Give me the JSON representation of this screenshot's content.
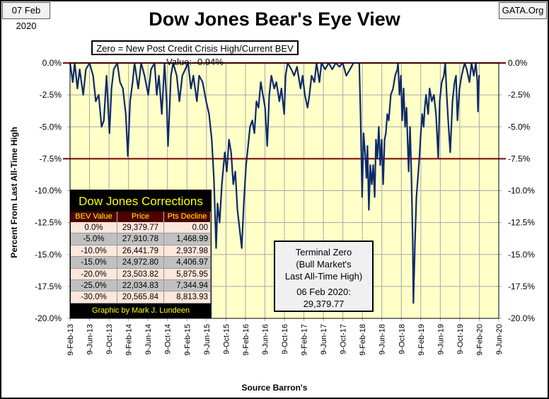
{
  "header": {
    "date": "07 Feb 2020",
    "site": "GATA.Org"
  },
  "chart_data": {
    "type": "line",
    "title": "Dow Jones Bear's Eye View",
    "subtitle": "Zero = New Post Credit Crisis High/Current BEV Value:  -0.94%",
    "ylabel": "Percent From Last All-Time High",
    "xlabel": "Source Barron's",
    "ylim": [
      -20,
      0
    ],
    "xlim": [
      "2013-02-09",
      "2020-06-09"
    ],
    "grid": true,
    "y_ticks": [
      "0.0%",
      "-2.5%",
      "-5.0%",
      "-7.5%",
      "-10.0%",
      "-12.5%",
      "-15.0%",
      "-17.5%",
      "-20.0%"
    ],
    "y_tick_values": [
      0,
      -2.5,
      -5,
      -7.5,
      -10,
      -12.5,
      -15,
      -17.5,
      -20
    ],
    "x_ticks": [
      "9-Feb-13",
      "9-Jun-13",
      "9-Oct-13",
      "9-Feb-14",
      "9-Jun-14",
      "9-Oct-14",
      "9-Feb-15",
      "9-Jun-15",
      "9-Oct-15",
      "9-Feb-16",
      "9-Jun-16",
      "9-Oct-16",
      "9-Feb-17",
      "9-Jun-17",
      "9-Oct-17",
      "9-Feb-18",
      "9-Jun-18",
      "9-Oct-18",
      "9-Feb-19",
      "9-Jun-19",
      "9-Oct-19",
      "9-Feb-20",
      "9-Jun-20"
    ],
    "reference_lines": [
      0,
      -7.5
    ],
    "colors": {
      "series": "#0d2a6b",
      "reference": "#7a0000",
      "plot_bg": "#ffffc8",
      "grid": "#a8a8a8"
    },
    "series": [
      {
        "points": [
          [
            "2013-02-09",
            0
          ],
          [
            "2013-02-26",
            -1.5
          ],
          [
            "2013-03-10",
            0
          ],
          [
            "2013-03-27",
            -2
          ],
          [
            "2013-04-10",
            -0.5
          ],
          [
            "2013-05-02",
            -2.5
          ],
          [
            "2013-05-19",
            -0.5
          ],
          [
            "2013-06-11",
            0
          ],
          [
            "2013-07-03",
            -1
          ],
          [
            "2013-07-20",
            -3
          ],
          [
            "2013-08-07",
            -2.5
          ],
          [
            "2013-08-25",
            -5
          ],
          [
            "2013-09-08",
            -4.5
          ],
          [
            "2013-09-25",
            -1
          ],
          [
            "2013-10-13",
            -5.5
          ],
          [
            "2013-10-26",
            -2
          ],
          [
            "2013-11-09",
            -0.5
          ],
          [
            "2013-12-01",
            0
          ],
          [
            "2013-12-18",
            -1.5
          ],
          [
            "2014-01-05",
            -2
          ],
          [
            "2014-01-23",
            -4
          ],
          [
            "2014-02-05",
            -7.3
          ],
          [
            "2014-02-19",
            -3
          ],
          [
            "2014-03-07",
            -1.5
          ],
          [
            "2014-03-19",
            0
          ],
          [
            "2014-04-11",
            -2
          ],
          [
            "2014-04-29",
            0
          ],
          [
            "2014-05-20",
            -1
          ],
          [
            "2014-06-12",
            -2.5
          ],
          [
            "2014-06-30",
            -0.5
          ],
          [
            "2014-07-22",
            0
          ],
          [
            "2014-08-04",
            -2.5
          ],
          [
            "2014-08-18",
            -1
          ],
          [
            "2014-09-05",
            -4
          ],
          [
            "2014-09-22",
            0
          ],
          [
            "2014-10-05",
            -3
          ],
          [
            "2014-10-14",
            -6.5
          ],
          [
            "2014-11-01",
            -1
          ],
          [
            "2014-11-15",
            0
          ],
          [
            "2014-12-07",
            -1
          ],
          [
            "2014-12-24",
            -3
          ],
          [
            "2015-01-11",
            -1
          ],
          [
            "2015-01-29",
            -0.5
          ],
          [
            "2015-02-16",
            0
          ],
          [
            "2015-03-06",
            -2
          ],
          [
            "2015-03-21",
            -1
          ],
          [
            "2015-04-12",
            -3
          ],
          [
            "2015-04-26",
            -1
          ],
          [
            "2015-05-18",
            -1.5
          ],
          [
            "2015-06-09",
            -3
          ],
          [
            "2015-06-27",
            -4
          ],
          [
            "2015-07-14",
            -6
          ],
          [
            "2015-07-27",
            -9
          ],
          [
            "2015-08-10",
            -14.5
          ],
          [
            "2015-08-19",
            -11
          ],
          [
            "2015-09-01",
            -12.5
          ],
          [
            "2015-09-15",
            -9.5
          ],
          [
            "2015-10-03",
            -7
          ],
          [
            "2015-10-16",
            -8.5
          ],
          [
            "2015-10-29",
            -6
          ],
          [
            "2015-11-12",
            -7
          ],
          [
            "2015-11-25",
            -9.5
          ],
          [
            "2015-12-08",
            -8.5
          ],
          [
            "2015-12-21",
            -11.5
          ],
          [
            "2016-01-04",
            -13
          ],
          [
            "2016-01-17",
            -14.5
          ],
          [
            "2016-01-30",
            -11
          ],
          [
            "2016-02-13",
            -8
          ],
          [
            "2016-02-26",
            -6.5
          ],
          [
            "2016-03-09",
            -5
          ],
          [
            "2016-03-23",
            -4.5
          ],
          [
            "2016-04-05",
            -5.5
          ],
          [
            "2016-04-18",
            -3
          ],
          [
            "2016-05-01",
            -3.5
          ],
          [
            "2016-05-15",
            -1.5
          ],
          [
            "2016-05-28",
            -2.5
          ],
          [
            "2016-06-11",
            -3.5
          ],
          [
            "2016-06-24",
            -6.5
          ],
          [
            "2016-07-07",
            -2.5
          ],
          [
            "2016-07-20",
            -1
          ],
          [
            "2016-08-07",
            -2
          ],
          [
            "2016-08-20",
            -1.5
          ],
          [
            "2016-09-08",
            -3
          ],
          [
            "2016-09-21",
            -2
          ],
          [
            "2016-10-08",
            -4
          ],
          [
            "2016-10-17",
            -1
          ],
          [
            "2016-10-30",
            0
          ],
          [
            "2016-11-22",
            -0.5
          ],
          [
            "2016-12-09",
            -1
          ],
          [
            "2016-12-27",
            -0.3
          ],
          [
            "2017-01-18",
            -2
          ],
          [
            "2017-01-31",
            -1
          ],
          [
            "2017-02-14",
            -2.5
          ],
          [
            "2017-03-03",
            -3.5
          ],
          [
            "2017-03-15",
            -2.5
          ],
          [
            "2017-03-28",
            -1
          ],
          [
            "2017-04-15",
            -1.5
          ],
          [
            "2017-04-28",
            0
          ],
          [
            "2017-05-16",
            -1.5
          ],
          [
            "2017-05-29",
            0
          ],
          [
            "2017-06-21",
            -0.5
          ],
          [
            "2017-07-13",
            0
          ],
          [
            "2017-08-04",
            -0.5
          ],
          [
            "2017-08-26",
            0
          ],
          [
            "2017-09-18",
            -0.3
          ],
          [
            "2017-10-09",
            0
          ],
          [
            "2017-10-31",
            -1
          ],
          [
            "2017-11-23",
            -0.5
          ],
          [
            "2017-12-15",
            0
          ],
          [
            "2018-01-20",
            0
          ],
          [
            "2018-01-28",
            -4
          ],
          [
            "2018-02-07",
            -10.5
          ],
          [
            "2018-02-16",
            -5.5
          ],
          [
            "2018-02-25",
            -7
          ],
          [
            "2018-03-06",
            -9
          ],
          [
            "2018-03-12",
            -6.5
          ],
          [
            "2018-03-21",
            -11.5
          ],
          [
            "2018-03-30",
            -8
          ],
          [
            "2018-04-08",
            -9.5
          ],
          [
            "2018-04-17",
            -8
          ],
          [
            "2018-04-26",
            -10.5
          ],
          [
            "2018-05-04",
            -6
          ],
          [
            "2018-05-13",
            -7.5
          ],
          [
            "2018-05-22",
            -5
          ],
          [
            "2018-05-31",
            -8
          ],
          [
            "2018-06-09",
            -6
          ],
          [
            "2018-06-18",
            -9.5
          ],
          [
            "2018-06-27",
            -6
          ],
          [
            "2018-07-05",
            -5.5
          ],
          [
            "2018-07-14",
            -4
          ],
          [
            "2018-07-23",
            -4.5
          ],
          [
            "2018-08-05",
            -2.5
          ],
          [
            "2018-08-19",
            -2
          ],
          [
            "2018-09-01",
            -1
          ],
          [
            "2018-09-15",
            -0.5
          ],
          [
            "2018-09-19",
            0
          ],
          [
            "2018-09-28",
            -2.5
          ],
          [
            "2018-10-07",
            -1
          ],
          [
            "2018-10-15",
            -4.5
          ],
          [
            "2018-10-24",
            -2
          ],
          [
            "2018-11-02",
            -5
          ],
          [
            "2018-11-11",
            -3.5
          ],
          [
            "2018-11-24",
            -8.5
          ],
          [
            "2018-12-03",
            -5
          ],
          [
            "2018-12-12",
            -9
          ],
          [
            "2018-12-20",
            -14
          ],
          [
            "2018-12-24",
            -18.8
          ],
          [
            "2019-01-03",
            -14
          ],
          [
            "2019-01-12",
            -10.5
          ],
          [
            "2019-01-21",
            -9
          ],
          [
            "2019-01-30",
            -7.5
          ],
          [
            "2019-02-08",
            -5.5
          ],
          [
            "2019-02-17",
            -4
          ],
          [
            "2019-02-26",
            -5
          ],
          [
            "2019-03-05",
            -3.5
          ],
          [
            "2019-03-13",
            -2.5
          ],
          [
            "2019-03-26",
            -4
          ],
          [
            "2019-04-04",
            -2
          ],
          [
            "2019-04-18",
            -3
          ],
          [
            "2019-05-01",
            -2.5
          ],
          [
            "2019-05-14",
            -4
          ],
          [
            "2019-05-28",
            -7.4
          ],
          [
            "2019-06-06",
            -3
          ],
          [
            "2019-06-19",
            -1.5
          ],
          [
            "2019-07-02",
            -1
          ],
          [
            "2019-07-11",
            0
          ],
          [
            "2019-07-20",
            -2.5
          ],
          [
            "2019-07-29",
            -4.5
          ],
          [
            "2019-08-11",
            -7
          ],
          [
            "2019-08-25",
            -3
          ],
          [
            "2019-09-07",
            -1.5
          ],
          [
            "2019-09-16",
            -1
          ],
          [
            "2019-09-25",
            -4.5
          ],
          [
            "2019-10-08",
            -2
          ],
          [
            "2019-10-21",
            -1
          ],
          [
            "2019-11-09",
            0
          ],
          [
            "2019-11-22",
            -0.5
          ],
          [
            "2019-12-09",
            -1.5
          ],
          [
            "2019-12-22",
            0
          ],
          [
            "2020-01-05",
            -1
          ],
          [
            "2020-01-18",
            0
          ],
          [
            "2020-01-27",
            -1.5
          ],
          [
            "2020-01-31",
            -3.8
          ],
          [
            "2020-02-07",
            -0.94
          ]
        ]
      }
    ]
  },
  "corrections_table": {
    "title": "Dow Jones Corrections",
    "columns": [
      "BEV Value",
      "Price",
      "Pts Decline"
    ],
    "rows": [
      [
        "0.0%",
        "29,379.77",
        "0.00"
      ],
      [
        "-5.0%",
        "27,910.78",
        "1,468.99"
      ],
      [
        "-10.0%",
        "26,441.79",
        "2,937.98"
      ],
      [
        "-15.0%",
        "24,972.80",
        "4,406.97"
      ],
      [
        "-20.0%",
        "23,503.82",
        "5,875.95"
      ],
      [
        "-25.0%",
        "22,034.83",
        "7,344.94"
      ],
      [
        "-30.0%",
        "20,565.84",
        "8,813.93"
      ]
    ],
    "footer": "Graphic by Mark J. Lundeen"
  },
  "terminal_zero": {
    "line1": "Terminal Zero",
    "line2": "(Bull Market's",
    "line3": "Last All-Time High)",
    "line4": "06 Feb 2020:",
    "line5": "29,379.77"
  }
}
